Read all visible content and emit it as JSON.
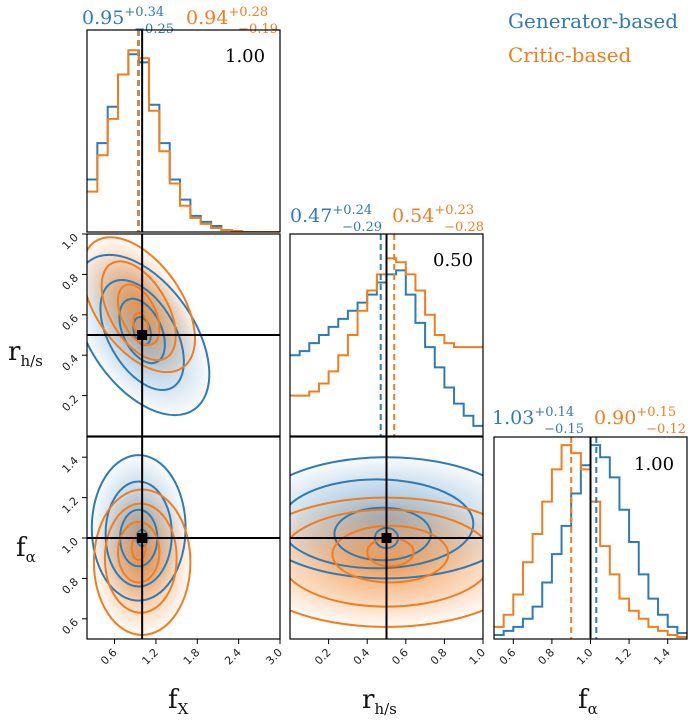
{
  "colors": {
    "generator": "#2f7bb6",
    "critic": "#f07d1e",
    "truth": "#000000"
  },
  "legend": {
    "generator_label": "Generator-based",
    "critic_label": "Critic-based"
  },
  "chart_data": {
    "type": "corner",
    "parameters": [
      {
        "key": "fX",
        "label_main": "f",
        "label_sub": "X",
        "truth": 1.0,
        "range": [
          0.2,
          3.0
        ],
        "ticks": [
          "0.6",
          "1.2",
          "1.8",
          "2.4",
          "3.0"
        ],
        "tick_values": [
          0.6,
          1.2,
          1.8,
          2.4,
          3.0
        ]
      },
      {
        "key": "rhs",
        "label_main": "r",
        "label_sub": "h/s",
        "truth": 0.5,
        "range": [
          0.0,
          1.0
        ],
        "ticks": [
          "0.2",
          "0.4",
          "0.6",
          "0.8",
          "1.0"
        ],
        "tick_values": [
          0.2,
          0.4,
          0.6,
          0.8,
          1.0
        ]
      },
      {
        "key": "falpha",
        "label_main": "f",
        "label_sub": "α",
        "truth": 1.0,
        "range": [
          0.5,
          1.5
        ],
        "ticks": [
          "0.6",
          "0.8",
          "1.0",
          "1.2",
          "1.4"
        ],
        "tick_values": [
          0.6,
          0.8,
          1.0,
          1.2,
          1.4
        ]
      }
    ],
    "summaries": [
      {
        "param": "fX",
        "generator": {
          "median": "0.95",
          "plus": "+0.34",
          "minus": "−0.25",
          "median_value": 0.95
        },
        "critic": {
          "median": "0.94",
          "plus": "+0.28",
          "minus": "−0.19",
          "median_value": 0.94
        },
        "coverage": "1.00"
      },
      {
        "param": "rhs",
        "generator": {
          "median": "0.47",
          "plus": "+0.24",
          "minus": "−0.29",
          "median_value": 0.47
        },
        "critic": {
          "median": "0.54",
          "plus": "+0.23",
          "minus": "−0.28",
          "median_value": 0.54
        },
        "coverage": "0.50"
      },
      {
        "param": "falpha",
        "generator": {
          "median": "1.03",
          "plus": "+0.14",
          "minus": "−0.15",
          "median_value": 1.03
        },
        "critic": {
          "median": "0.90",
          "plus": "+0.15",
          "minus": "−0.12",
          "median_value": 0.9
        },
        "coverage": "1.00"
      }
    ],
    "histograms": {
      "fX": {
        "bin_edges": [
          0.2,
          0.35,
          0.5,
          0.65,
          0.8,
          0.95,
          1.1,
          1.25,
          1.4,
          1.55,
          1.7,
          1.85,
          2.0,
          2.15,
          2.3,
          2.45,
          3.0
        ],
        "generator": [
          0.26,
          0.44,
          0.62,
          0.78,
          0.88,
          0.84,
          0.63,
          0.44,
          0.26,
          0.16,
          0.08,
          0.05,
          0.03,
          0.01,
          0.005,
          0.0
        ],
        "critic": [
          0.2,
          0.38,
          0.56,
          0.78,
          0.9,
          0.86,
          0.6,
          0.4,
          0.24,
          0.13,
          0.07,
          0.04,
          0.02,
          0.01,
          0.005,
          0.0
        ]
      },
      "rhs": {
        "bin_edges": [
          0.0,
          0.05,
          0.1,
          0.15,
          0.2,
          0.25,
          0.3,
          0.35,
          0.4,
          0.45,
          0.5,
          0.55,
          0.6,
          0.65,
          0.7,
          0.75,
          0.8,
          0.85,
          0.9,
          0.95,
          1.0
        ],
        "generator": [
          0.4,
          0.42,
          0.46,
          0.5,
          0.54,
          0.58,
          0.62,
          0.66,
          0.7,
          0.76,
          0.8,
          0.82,
          0.7,
          0.56,
          0.44,
          0.34,
          0.24,
          0.16,
          0.1,
          0.05
        ],
        "critic": [
          0.2,
          0.2,
          0.22,
          0.26,
          0.32,
          0.4,
          0.5,
          0.62,
          0.72,
          0.8,
          0.88,
          0.86,
          0.8,
          0.72,
          0.6,
          0.5,
          0.46,
          0.44,
          0.44,
          0.44
        ]
      },
      "falpha": {
        "bin_edges": [
          0.5,
          0.55,
          0.6,
          0.65,
          0.7,
          0.75,
          0.8,
          0.85,
          0.9,
          0.95,
          1.0,
          1.05,
          1.1,
          1.15,
          1.2,
          1.25,
          1.3,
          1.35,
          1.4,
          1.45,
          1.5
        ],
        "generator": [
          0.02,
          0.04,
          0.06,
          0.1,
          0.16,
          0.28,
          0.42,
          0.56,
          0.72,
          0.86,
          0.96,
          0.9,
          0.8,
          0.64,
          0.48,
          0.32,
          0.2,
          0.12,
          0.06,
          0.03
        ],
        "critic": [
          0.06,
          0.12,
          0.22,
          0.38,
          0.52,
          0.68,
          0.84,
          0.96,
          0.92,
          0.84,
          0.68,
          0.46,
          0.32,
          0.2,
          0.14,
          0.1,
          0.06,
          0.04,
          0.02,
          0.01
        ]
      }
    },
    "contours": {
      "fX_rhs": {
        "generator": [
          {
            "cx": 1.0,
            "cy": 0.52,
            "rx": 0.12,
            "ry": 0.07,
            "rot": -15
          },
          {
            "cx": 1.0,
            "cy": 0.52,
            "rx": 0.28,
            "ry": 0.17,
            "rot": -25
          },
          {
            "cx": 1.0,
            "cy": 0.5,
            "rx": 0.48,
            "ry": 0.3,
            "rot": -30
          },
          {
            "cx": 1.0,
            "cy": 0.5,
            "rx": 0.75,
            "ry": 0.45,
            "rot": -35
          }
        ],
        "critic": [
          {
            "cx": 0.98,
            "cy": 0.55,
            "rx": 0.1,
            "ry": 0.06,
            "rot": -15
          },
          {
            "cx": 0.95,
            "cy": 0.6,
            "rx": 0.25,
            "ry": 0.16,
            "rot": -25
          },
          {
            "cx": 0.95,
            "cy": 0.62,
            "rx": 0.42,
            "ry": 0.27,
            "rot": -30
          },
          {
            "cx": 0.95,
            "cy": 0.65,
            "rx": 0.62,
            "ry": 0.38,
            "rot": -35
          }
        ]
      },
      "fX_falpha": {
        "generator": [
          {
            "cx": 1.0,
            "cy": 1.0,
            "rx": 0.08,
            "ry": 0.04,
            "rot": 0
          },
          {
            "cx": 0.95,
            "cy": 1.0,
            "rx": 0.27,
            "ry": 0.14,
            "rot": 0
          },
          {
            "cx": 0.95,
            "cy": 1.02,
            "rx": 0.48,
            "ry": 0.26,
            "rot": 0
          },
          {
            "cx": 0.95,
            "cy": 1.05,
            "rx": 0.68,
            "ry": 0.36,
            "rot": 0
          }
        ],
        "critic": [
          {
            "cx": 0.95,
            "cy": 0.95,
            "rx": 0.1,
            "ry": 0.06,
            "rot": 0
          },
          {
            "cx": 0.95,
            "cy": 0.93,
            "rx": 0.3,
            "ry": 0.15,
            "rot": 0
          },
          {
            "cx": 0.98,
            "cy": 0.9,
            "rx": 0.52,
            "ry": 0.27,
            "rot": 0
          },
          {
            "cx": 1.0,
            "cy": 0.88,
            "rx": 0.7,
            "ry": 0.36,
            "rot": 0
          }
        ]
      },
      "rhs_falpha": {
        "generator": [
          {
            "cx": 0.5,
            "cy": 1.0,
            "rx": 0.06,
            "ry": 0.05,
            "rot": 0
          },
          {
            "cx": 0.48,
            "cy": 1.02,
            "rx": 0.25,
            "ry": 0.13,
            "rot": 0
          },
          {
            "cx": 0.45,
            "cy": 1.07,
            "rx": 0.5,
            "ry": 0.22,
            "rot": 0
          },
          {
            "cx": 0.5,
            "cy": 1.1,
            "rx": 0.7,
            "ry": 0.3,
            "rot": 0
          }
        ],
        "critic": [
          {
            "cx": 0.52,
            "cy": 0.93,
            "rx": 0.12,
            "ry": 0.07,
            "rot": 0
          },
          {
            "cx": 0.52,
            "cy": 0.92,
            "rx": 0.3,
            "ry": 0.14,
            "rot": 0
          },
          {
            "cx": 0.5,
            "cy": 0.9,
            "rx": 0.55,
            "ry": 0.24,
            "rot": 0
          },
          {
            "cx": 0.5,
            "cy": 0.88,
            "rx": 0.75,
            "ry": 0.32,
            "rot": 0
          }
        ]
      }
    }
  }
}
